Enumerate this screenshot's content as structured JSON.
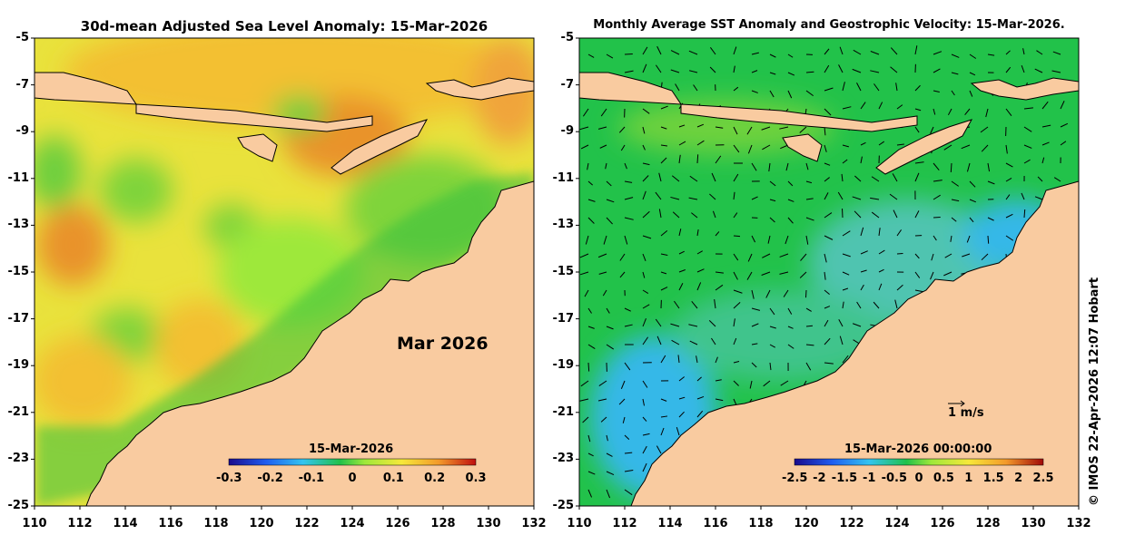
{
  "left_panel": {
    "title": "30d-mean Adjusted Sea Level Anomaly: 15-Mar-2026",
    "month_label": "Mar 2026",
    "colorbar_date": "15-Mar-2026",
    "colorbar_ticks": [
      "-0.3",
      "-0.2",
      "-0.1",
      "0",
      "0.1",
      "0.2",
      "0.3"
    ],
    "colorbar_range": [
      -0.3,
      0.3
    ]
  },
  "right_panel": {
    "title": "Monthly Average SST Anomaly  and Geostrophic Velocity: 15-Mar-2026.",
    "colorbar_date": "15-Mar-2026 00:00:00",
    "colorbar_ticks": [
      "-2.5",
      "-2",
      "-1.5",
      "-1",
      "-0.5",
      "0",
      "0.5",
      "1",
      "1.5",
      "2",
      "2.5"
    ],
    "colorbar_range": [
      -2.5,
      2.5
    ],
    "velocity_scale_label": "1 m/s"
  },
  "axes": {
    "y_ticks": [
      "-5",
      "-7",
      "-9",
      "-11",
      "-13",
      "-15",
      "-17",
      "-19",
      "-21",
      "-23",
      "-25"
    ],
    "x_ticks": [
      "110",
      "112",
      "114",
      "116",
      "118",
      "120",
      "122",
      "124",
      "126",
      "128",
      "130",
      "132"
    ],
    "lon_range": [
      110,
      132
    ],
    "lat_range": [
      -25,
      -5
    ]
  },
  "credit": "© IMOS 22-Apr-2026 12:07 Hobart",
  "colors": {
    "land": "#f9cba0",
    "sla_mid": "#f2d23a",
    "sla_high": "#f0a43a",
    "sla_low": "#6ecf3c",
    "sst_mid": "#22c24a",
    "sst_low": "#35b8e8"
  }
}
